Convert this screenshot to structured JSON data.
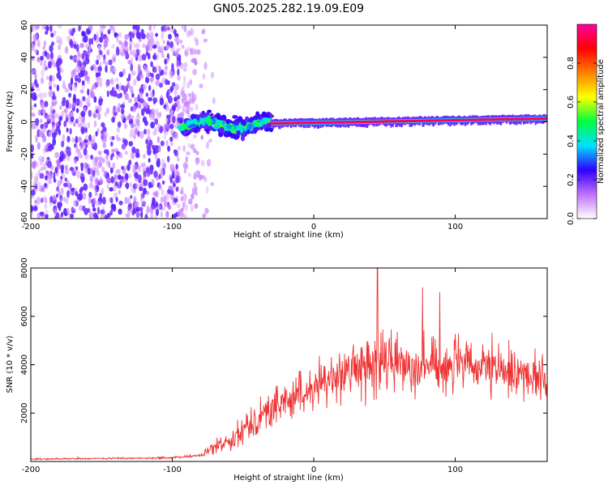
{
  "title": "GN05.2025.282.19.09.E09",
  "chart_data": [
    {
      "type": "heatmap",
      "name": "spectrogram",
      "xlabel": "Height of straight line (km)",
      "ylabel": "Frequency (Hz)",
      "xlim": [
        -200,
        165
      ],
      "ylim": [
        -60,
        60
      ],
      "xticks": [
        -200,
        -100,
        0,
        100
      ],
      "yticks": [
        -60,
        -40,
        -20,
        0,
        20,
        40,
        60
      ],
      "xtick_labels": [
        "-200",
        "-100",
        "0",
        "100"
      ],
      "ytick_labels": [
        "-60",
        "-40",
        "-20",
        "0",
        "20",
        "40",
        "60"
      ],
      "regions": [
        {
          "description": "broadband low-amplitude noise",
          "x_range": [
            -200,
            -70
          ],
          "freq_range": [
            -60,
            60
          ],
          "amplitude": 0.2
        },
        {
          "description": "signal onset band",
          "x_range": [
            -95,
            -30
          ],
          "freq_range": [
            -12,
            8
          ],
          "amplitude": 0.4
        },
        {
          "description": "narrow signal line",
          "x_range": [
            -30,
            165
          ],
          "center_freq_start": -1,
          "center_freq_end": 2,
          "amplitude": 0.95
        }
      ],
      "colorbar": {
        "label": "Normalized spectral amplitude",
        "range": [
          0,
          1
        ],
        "ticks": [
          0,
          0.2,
          0.4,
          0.6,
          0.8
        ],
        "tick_labels": [
          "0.0",
          "0.2",
          "0.4",
          "0.6",
          "0.8"
        ],
        "colors": [
          "#ffffff",
          "#c070ff",
          "#3000ff",
          "#00e0ff",
          "#00ff40",
          "#ffff00",
          "#ff8000",
          "#ff0000",
          "#ff00a0"
        ]
      }
    },
    {
      "type": "line",
      "name": "snr",
      "xlabel": "Height of straight line (km)",
      "ylabel": "SNR (10 * v/v)",
      "xlim": [
        -200,
        165
      ],
      "ylim": [
        0,
        8000
      ],
      "xticks": [
        -200,
        -100,
        0,
        100
      ],
      "yticks": [
        2000,
        4000,
        6000,
        8000
      ],
      "xtick_labels": [
        "-200",
        "-100",
        "0",
        "100"
      ],
      "ytick_labels": [
        "2000",
        "4000",
        "6000",
        "8000"
      ],
      "color": "#ee3333",
      "envelope": {
        "x": [
          -200,
          -100,
          -80,
          -60,
          -40,
          -20,
          0,
          20,
          40,
          60,
          80,
          100,
          120,
          140,
          160,
          165
        ],
        "mean": [
          100,
          150,
          250,
          900,
          1800,
          2500,
          3000,
          3700,
          4000,
          4100,
          4000,
          4000,
          3800,
          3700,
          3500,
          3400
        ],
        "spread": [
          40,
          50,
          100,
          600,
          900,
          1100,
          1200,
          1300,
          1500,
          1600,
          1500,
          1500,
          1400,
          1300,
          1200,
          1200
        ]
      },
      "peaks": [
        {
          "x": 45,
          "y": 8000
        },
        {
          "x": 77,
          "y": 7200
        },
        {
          "x": 89,
          "y": 7000
        }
      ]
    }
  ]
}
